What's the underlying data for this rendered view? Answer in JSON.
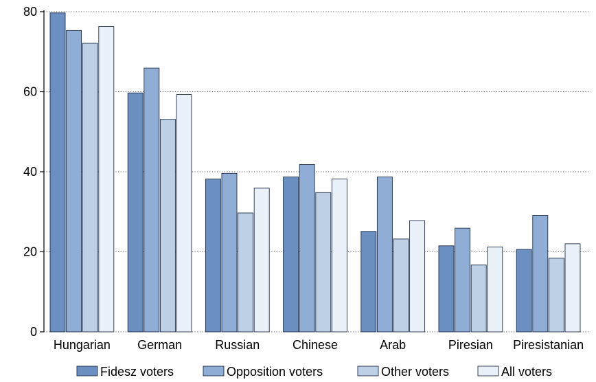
{
  "chart_data": {
    "type": "bar",
    "title": "",
    "xlabel": "",
    "ylabel": "",
    "ylim": [
      0,
      80
    ],
    "yticks": [
      0,
      20,
      40,
      60,
      80
    ],
    "grid": true,
    "legend_position": "bottom",
    "categories": [
      "Hungarian",
      "German",
      "Russian",
      "Chinese",
      "Arab",
      "Piresian",
      "Piresistanian"
    ],
    "series": [
      {
        "name": "Fidesz voters",
        "color": "#6a8fc0",
        "values": [
          79.7,
          59.7,
          38.2,
          38.7,
          25.1,
          21.5,
          20.6
        ]
      },
      {
        "name": "Opposition voters",
        "color": "#90aed5",
        "values": [
          75.3,
          65.9,
          39.6,
          41.8,
          38.7,
          25.9,
          29.1
        ]
      },
      {
        "name": "Other voters",
        "color": "#bdd0e6",
        "values": [
          72.1,
          53.1,
          29.7,
          34.8,
          23.2,
          16.7,
          18.4
        ]
      },
      {
        "name": "All voters",
        "color": "#ebf1f8",
        "values": [
          76.3,
          59.3,
          35.9,
          38.2,
          27.8,
          21.2,
          22.0
        ]
      }
    ]
  }
}
